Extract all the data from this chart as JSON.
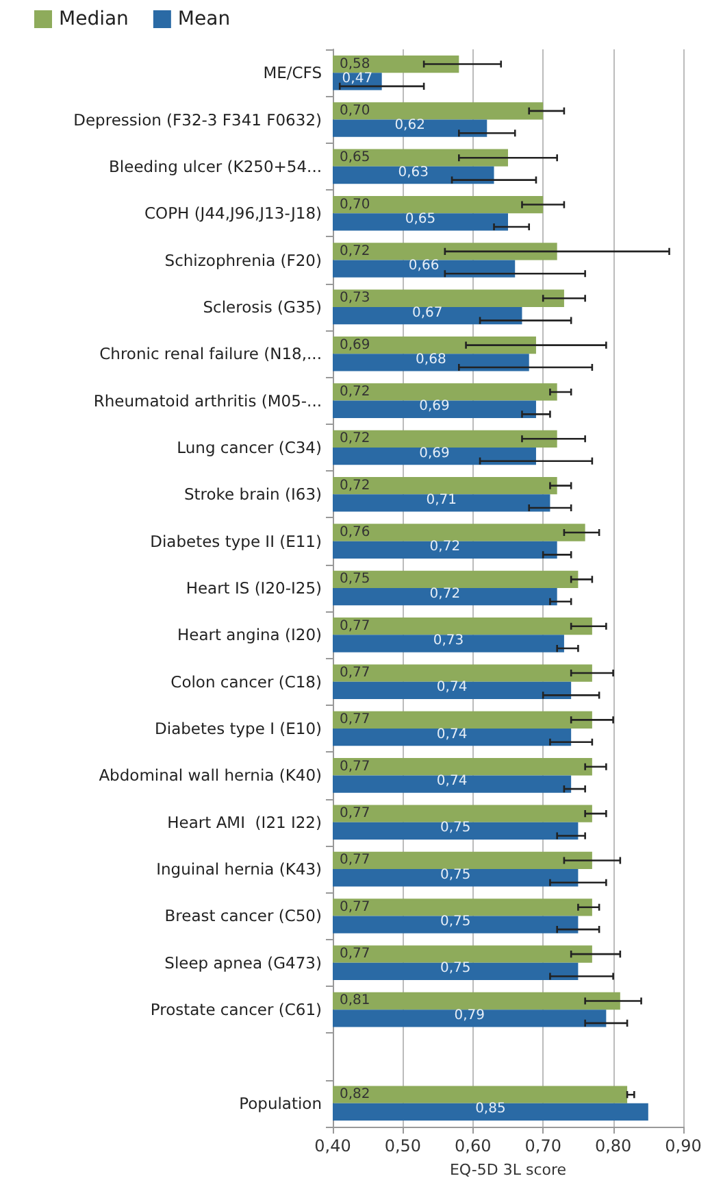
{
  "chart_data": {
    "type": "bar",
    "orientation": "horizontal",
    "xlabel": "EQ-5D 3L score",
    "categories": [
      "ME/CFS",
      "Depression (F32-3 F341 F0632)",
      "Bleeding ulcer (K250+54...",
      "COPH (J44,J96,J13-J18)",
      "Schizophrenia (F20)",
      "Sclerosis (G35)",
      "Chronic renal failure (N18,...",
      "Rheumatoid arthritis (M05-...",
      "Lung cancer (C34)",
      "Stroke brain (I63)",
      "Diabetes type II (E11)",
      "Heart IS (I20-I25)",
      "Heart angina (I20)",
      "Colon cancer (C18)",
      "Diabetes type I (E10)",
      "Abdominal wall hernia (K40)",
      "Heart AMI  (I21 I22)",
      "Inguinal hernia (K43)",
      "Breast cancer (C50)",
      "Sleep apnea (G473)",
      "Prostate cancer (C61)",
      null,
      "Population"
    ],
    "series": [
      {
        "name": "Median",
        "color": "#8eab5b",
        "values": [
          0.58,
          0.7,
          0.65,
          0.7,
          0.72,
          0.73,
          0.69,
          0.72,
          0.72,
          0.72,
          0.76,
          0.75,
          0.77,
          0.77,
          0.77,
          0.77,
          0.77,
          0.77,
          0.77,
          0.77,
          0.81,
          null,
          0.82
        ],
        "value_labels": [
          "0,58",
          "0,70",
          "0,65",
          "0,70",
          "0,72",
          "0,73",
          "0,69",
          "0,72",
          "0,72",
          "0,72",
          "0,76",
          "0,75",
          "0,77",
          "0,77",
          "0,77",
          "0,77",
          "0,77",
          "0,77",
          "0,77",
          "0,77",
          "0,81",
          null,
          "0,82"
        ],
        "errors": [
          [
            0.53,
            0.64
          ],
          [
            0.68,
            0.73
          ],
          [
            0.58,
            0.72
          ],
          [
            0.67,
            0.73
          ],
          [
            0.56,
            0.88
          ],
          [
            0.7,
            0.76
          ],
          [
            0.59,
            0.79
          ],
          [
            0.71,
            0.74
          ],
          [
            0.67,
            0.76
          ],
          [
            0.71,
            0.74
          ],
          [
            0.73,
            0.78
          ],
          [
            0.74,
            0.77
          ],
          [
            0.74,
            0.79
          ],
          [
            0.74,
            0.8
          ],
          [
            0.74,
            0.8
          ],
          [
            0.76,
            0.79
          ],
          [
            0.76,
            0.79
          ],
          [
            0.73,
            0.81
          ],
          [
            0.75,
            0.78
          ],
          [
            0.74,
            0.81
          ],
          [
            0.76,
            0.84
          ],
          null,
          [
            0.82,
            0.83
          ]
        ]
      },
      {
        "name": "Mean",
        "color": "#2a6aa5",
        "values": [
          0.47,
          0.62,
          0.63,
          0.65,
          0.66,
          0.67,
          0.68,
          0.69,
          0.69,
          0.71,
          0.72,
          0.72,
          0.73,
          0.74,
          0.74,
          0.74,
          0.75,
          0.75,
          0.75,
          0.75,
          0.79,
          null,
          0.85
        ],
        "value_labels": [
          "0,47",
          "0,62",
          "0,63",
          "0,65",
          "0,66",
          "0,67",
          "0,68",
          "0,69",
          "0,69",
          "0,71",
          "0,72",
          "0,72",
          "0,73",
          "0,74",
          "0,74",
          "0,74",
          "0,75",
          "0,75",
          "0,75",
          "0,75",
          "0,79",
          null,
          "0,85"
        ],
        "errors": [
          [
            0.41,
            0.53
          ],
          [
            0.58,
            0.66
          ],
          [
            0.57,
            0.69
          ],
          [
            0.63,
            0.68
          ],
          [
            0.56,
            0.76
          ],
          [
            0.61,
            0.74
          ],
          [
            0.58,
            0.77
          ],
          [
            0.67,
            0.71
          ],
          [
            0.61,
            0.77
          ],
          [
            0.68,
            0.74
          ],
          [
            0.7,
            0.74
          ],
          [
            0.71,
            0.74
          ],
          [
            0.72,
            0.75
          ],
          [
            0.7,
            0.78
          ],
          [
            0.71,
            0.77
          ],
          [
            0.73,
            0.76
          ],
          [
            0.72,
            0.76
          ],
          [
            0.71,
            0.79
          ],
          [
            0.72,
            0.78
          ],
          [
            0.71,
            0.8
          ],
          [
            0.76,
            0.82
          ],
          null,
          null
        ]
      }
    ],
    "xlim": [
      0.4,
      0.9
    ],
    "xticks": [
      {
        "value": 0.4,
        "label": "0,40"
      },
      {
        "value": 0.5,
        "label": "0,50"
      },
      {
        "value": 0.6,
        "label": "0,60"
      },
      {
        "value": 0.7,
        "label": "0,70"
      },
      {
        "value": 0.8,
        "label": "0,80"
      },
      {
        "value": 0.9,
        "label": "0,90"
      }
    ],
    "grid": "x",
    "legend": "top left"
  }
}
